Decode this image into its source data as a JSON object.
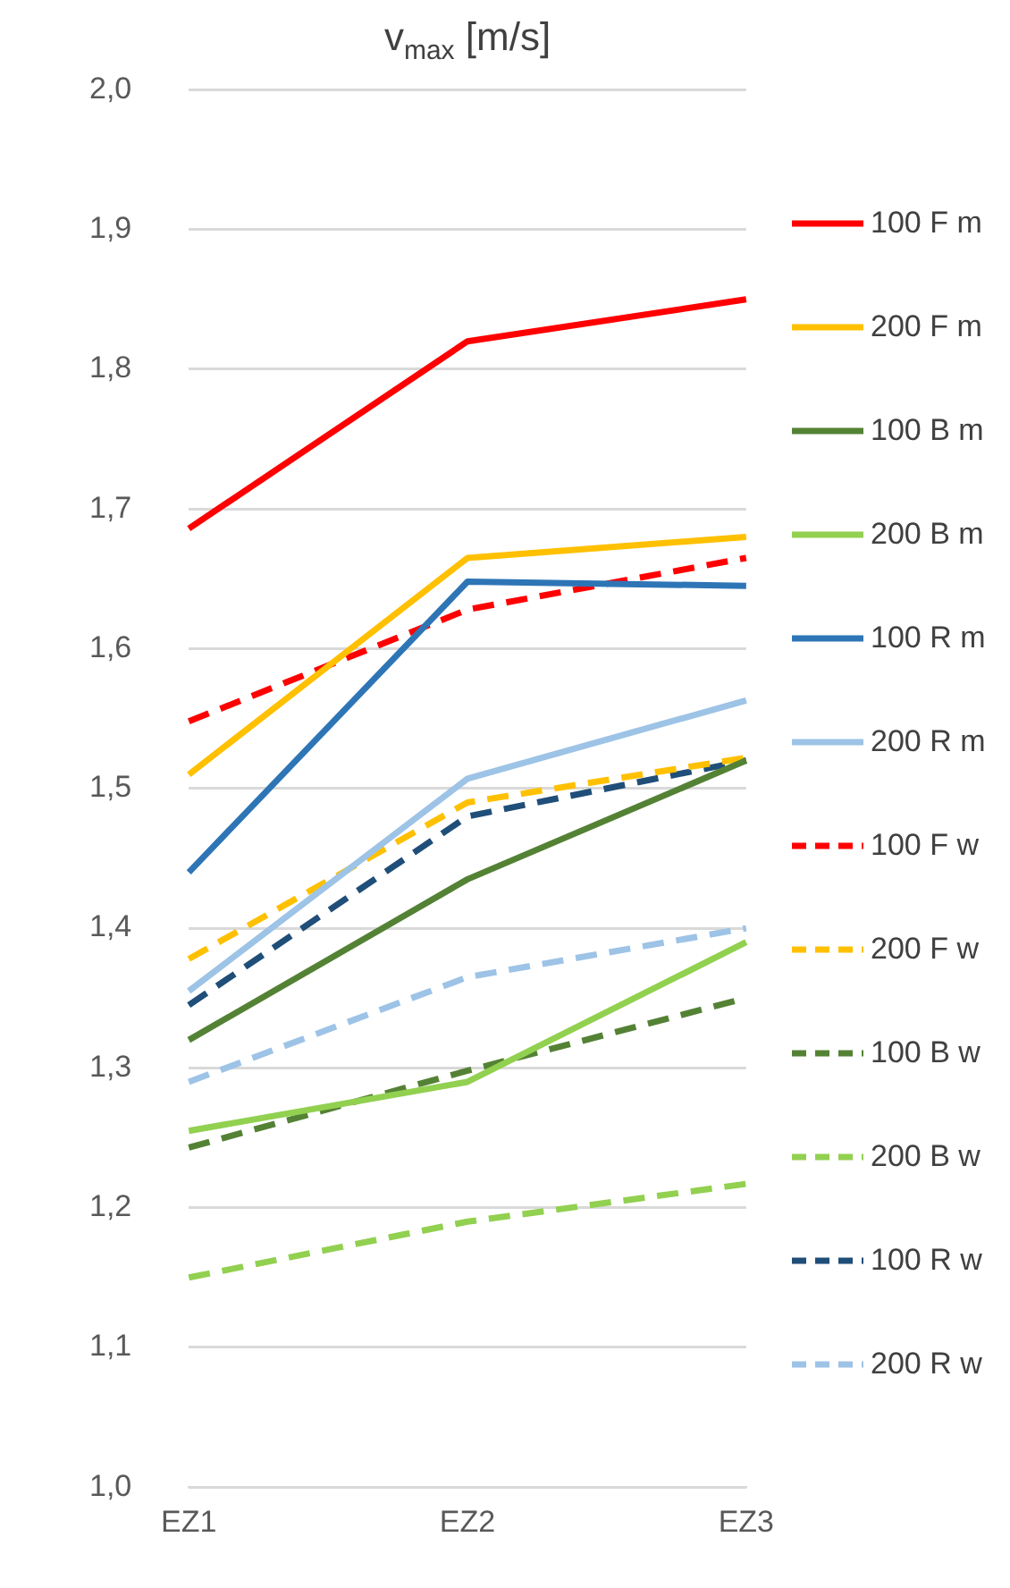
{
  "chart_data": {
    "type": "line",
    "title": "v$_{max}$ [m/s]",
    "categories": [
      "EZ1",
      "EZ2",
      "EZ3"
    ],
    "ylim": [
      1.0,
      2.0
    ],
    "yticks": [
      {
        "value": 1.0,
        "label": "1,0"
      },
      {
        "value": 1.1,
        "label": "1,1"
      },
      {
        "value": 1.2,
        "label": "1,2"
      },
      {
        "value": 1.3,
        "label": "1,3"
      },
      {
        "value": 1.4,
        "label": "1,4"
      },
      {
        "value": 1.5,
        "label": "1,5"
      },
      {
        "value": 1.6,
        "label": "1,6"
      },
      {
        "value": 1.7,
        "label": "1,7"
      },
      {
        "value": 1.8,
        "label": "1,8"
      },
      {
        "value": 1.9,
        "label": "1,9"
      },
      {
        "value": 2.0,
        "label": "2,0"
      }
    ],
    "grid": "y",
    "legend": "right",
    "marker": "none",
    "series": [
      {
        "name": "100 F m",
        "color": "#ff0000",
        "values": [
          1.686,
          1.82,
          1.85
        ]
      },
      {
        "name": "200 F m",
        "color": "#ffc000",
        "values": [
          1.51,
          1.665,
          1.68
        ]
      },
      {
        "name": "100 B m",
        "color": "#548235",
        "values": [
          1.32,
          1.435,
          1.52
        ]
      },
      {
        "name": "200 B m",
        "color": "#92d050",
        "values": [
          1.255,
          1.29,
          1.39
        ]
      },
      {
        "name": "100 R m",
        "color": "#2e75b6",
        "values": [
          1.44,
          1.648,
          1.645
        ]
      },
      {
        "name": "200 R m",
        "color": "#9dc3e6",
        "values": [
          1.355,
          1.507,
          1.563
        ]
      },
      {
        "name": "100 F w",
        "color": "#ff0000",
        "line_style": "dashed",
        "values": [
          1.548,
          1.628,
          1.665
        ]
      },
      {
        "name": "200 F w",
        "color": "#ffc000",
        "line_style": "dashed",
        "values": [
          1.378,
          1.49,
          1.522
        ]
      },
      {
        "name": "100 B w",
        "color": "#548235",
        "line_style": "dashed",
        "values": [
          1.243,
          1.298,
          1.35
        ]
      },
      {
        "name": "200 B w",
        "color": "#92d050",
        "line_style": "dashed",
        "values": [
          1.15,
          1.19,
          1.217
        ]
      },
      {
        "name": "100 R w",
        "color": "#1f4e79",
        "line_style": "dashed",
        "values": [
          1.345,
          1.48,
          1.52
        ]
      },
      {
        "name": "200 R w",
        "color": "#9dc3e6",
        "line_style": "dashed",
        "values": [
          1.29,
          1.365,
          1.4
        ]
      }
    ]
  }
}
